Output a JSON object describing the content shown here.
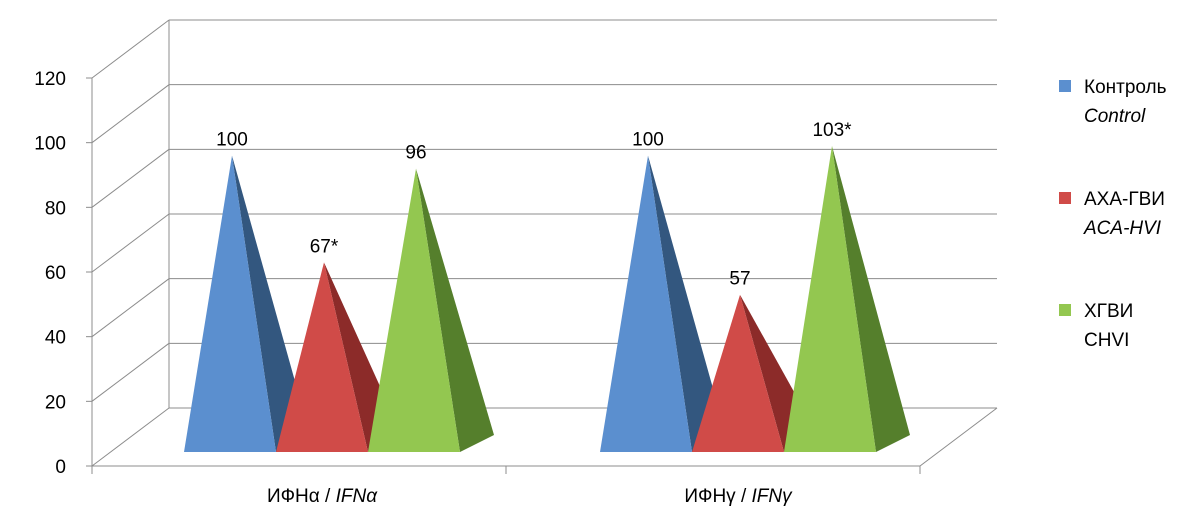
{
  "chart_data": {
    "type": "bar",
    "shape": "pyramid-3d",
    "categories": [
      "ИФНα / IFNα",
      "ИФНγ / IFNγ"
    ],
    "category_parts": [
      {
        "ru": "ИФНα / ",
        "en": "IFNα"
      },
      {
        "ru": "ИФНγ / ",
        "en": "IFNγ"
      }
    ],
    "series": [
      {
        "name": "Контроль",
        "name_en": "Control",
        "name_en_italic": true,
        "color": "#5b8fcf",
        "color_dark": "#33577f",
        "values": [
          100,
          100
        ],
        "labels": [
          "100",
          "100"
        ]
      },
      {
        "name": "АХА-ГВИ",
        "name_en": "ACA-HVI",
        "name_en_italic": true,
        "color": "#d04b48",
        "color_dark": "#8c2b29",
        "values": [
          67,
          57
        ],
        "labels": [
          "67*",
          "57"
        ]
      },
      {
        "name": "ХГВИ",
        "name_en": "CHVI",
        "name_en_italic": false,
        "color": "#93c750",
        "color_dark": "#557f2c",
        "values": [
          96,
          103
        ],
        "labels": [
          "96",
          "103*"
        ]
      }
    ],
    "ylim": [
      0,
      120
    ],
    "yticks": [
      "0",
      "20",
      "40",
      "60",
      "80",
      "100",
      "120"
    ],
    "grid": true,
    "legend": "right"
  }
}
